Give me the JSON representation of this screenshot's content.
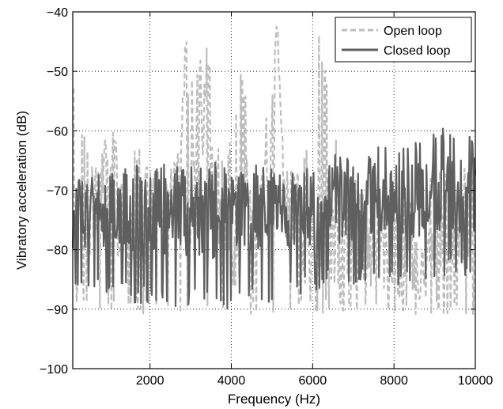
{
  "chart_data": {
    "type": "line",
    "title": "",
    "xlabel": "Frequency (Hz)",
    "ylabel": "Vibratory acceleration (dB)",
    "xlim": [
      100,
      10000
    ],
    "ylim": [
      -100,
      -40
    ],
    "x_ticks": [
      2000,
      4000,
      6000,
      8000,
      10000
    ],
    "x_tick_labels": [
      "2000",
      "4000",
      "6000",
      "8000",
      "10000"
    ],
    "y_ticks": [
      -100,
      -90,
      -80,
      -70,
      -60,
      -50,
      -40
    ],
    "y_tick_labels": [
      "−100",
      "−90",
      "−80",
      "−70",
      "−60",
      "−50",
      "−40"
    ],
    "grid": true,
    "legend_position": "top-right",
    "series": [
      {
        "name": "Open loop",
        "color": "#bdbdbd",
        "style": "dashed",
        "x": [
          100,
          150,
          500,
          1150,
          1200,
          1300,
          2000,
          2700,
          2820,
          2880,
          2950,
          3100,
          3300,
          3450,
          3520,
          3700,
          4000,
          4500,
          4800,
          5000,
          5130,
          5200,
          5300,
          5500,
          5700,
          6000,
          7000,
          8000,
          8400,
          9000,
          9500,
          10000
        ],
        "y": [
          -53,
          -78,
          -76,
          -62,
          -74,
          -76,
          -76,
          -70,
          -54,
          -46,
          -70,
          -68,
          -62,
          -49,
          -68,
          -72,
          -78,
          -73,
          -66,
          -60,
          -43,
          -58,
          -72,
          -73,
          -77,
          -80,
          -80,
          -82,
          -85,
          -80,
          -76,
          -74
        ],
        "envelope_top": [
          -53,
          -62,
          -66,
          -66,
          -66,
          -62,
          -66,
          -66,
          -65,
          -50,
          -46,
          -63,
          -63,
          -49,
          -66,
          -67,
          -69,
          -67,
          -62,
          -43,
          -58,
          -66,
          -68,
          -72,
          -72,
          -72,
          -70,
          -68,
          -67,
          -66,
          -66,
          -68
        ],
        "envelope_bottom": [
          -91,
          -91,
          -91,
          -91,
          -91,
          -91,
          -91,
          -91,
          -91,
          -91,
          -91,
          -91,
          -91,
          -91,
          -91,
          -91,
          -91,
          -91,
          -91,
          -91,
          -91,
          -91,
          -91,
          -91,
          -91,
          -91,
          -91,
          -91,
          -91,
          -91,
          -91,
          -91
        ]
      },
      {
        "name": "Closed loop",
        "color": "#5f5f5f",
        "style": "solid",
        "x": [
          100,
          500,
          1000,
          1500,
          2000,
          2500,
          3000,
          3500,
          4000,
          4500,
          5000,
          5500,
          6000,
          6500,
          7000,
          7500,
          8000,
          8500,
          9000,
          9500,
          10000
        ],
        "y": [
          -76,
          -74,
          -75,
          -74,
          -75,
          -74,
          -75,
          -75,
          -74,
          -75,
          -74,
          -75,
          -74,
          -73,
          -73,
          -72,
          -72,
          -72,
          -71,
          -71,
          -71
        ],
        "envelope_top": [
          -68,
          -67,
          -67,
          -66,
          -65,
          -66,
          -66,
          -65,
          -67,
          -65,
          -66,
          -67,
          -65,
          -64,
          -64,
          -63,
          -61,
          -62,
          -59,
          -60,
          -61
        ],
        "envelope_bottom": [
          -88,
          -88,
          -87,
          -89,
          -89,
          -90,
          -89,
          -90,
          -90,
          -89,
          -90,
          -88,
          -87,
          -86,
          -86,
          -86,
          -86,
          -85,
          -85,
          -84,
          -85
        ]
      }
    ]
  }
}
